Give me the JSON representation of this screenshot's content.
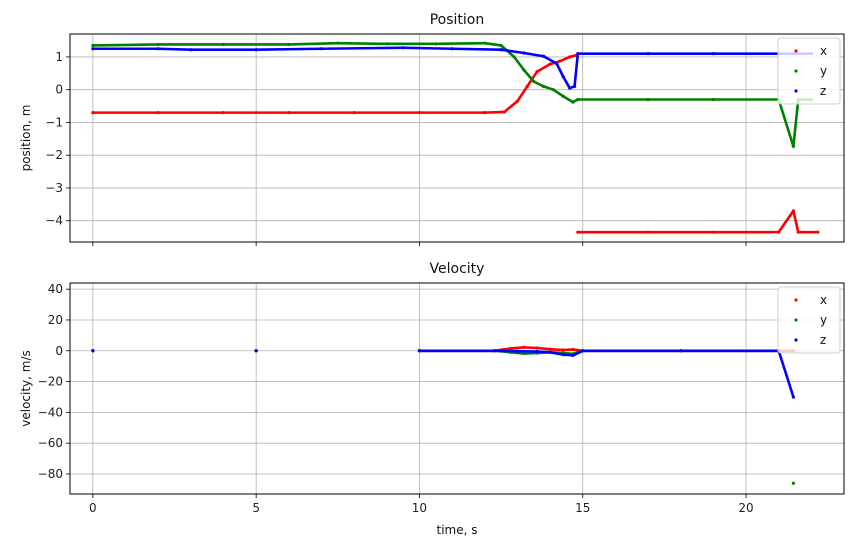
{
  "chart_data": [
    {
      "type": "scatter",
      "title": "Position",
      "xlabel": "",
      "ylabel": "position, m",
      "xlim": [
        -0.7,
        23.0
      ],
      "ylim": [
        -4.65,
        1.7
      ],
      "x_ticks": [
        0,
        5,
        10,
        15,
        20
      ],
      "x_tick_labels": [],
      "y_ticks": [
        1,
        0,
        -1,
        -2,
        -3,
        -4
      ],
      "y_tick_labels": [
        "1",
        "0",
        "−1",
        "−2",
        "−3",
        "−4"
      ],
      "grid": true,
      "legend": {
        "placement": "top-right",
        "entries": [
          "x",
          "y",
          "z"
        ]
      },
      "series": [
        {
          "name": "x",
          "color": "#ff0000",
          "points": [
            [
              0,
              -0.7
            ],
            [
              2,
              -0.7
            ],
            [
              4,
              -0.7
            ],
            [
              6,
              -0.7
            ],
            [
              8,
              -0.7
            ],
            [
              10,
              -0.7
            ],
            [
              12,
              -0.7
            ],
            [
              12.6,
              -0.68
            ],
            [
              13.0,
              -0.35
            ],
            [
              13.3,
              0.1
            ],
            [
              13.6,
              0.55
            ],
            [
              14.0,
              0.78
            ],
            [
              14.3,
              0.87
            ],
            [
              14.6,
              1.0
            ],
            [
              14.8,
              1.05
            ],
            [
              14.85,
              -4.35
            ],
            [
              17,
              -4.35
            ],
            [
              19,
              -4.35
            ],
            [
              21,
              -4.35
            ],
            [
              21.45,
              -3.7
            ],
            [
              21.6,
              -4.35
            ],
            [
              22.2,
              -4.35
            ]
          ]
        },
        {
          "name": "y",
          "color": "#008000",
          "points": [
            [
              0,
              1.35
            ],
            [
              2,
              1.38
            ],
            [
              4,
              1.38
            ],
            [
              6,
              1.38
            ],
            [
              7.5,
              1.42
            ],
            [
              9,
              1.4
            ],
            [
              10.5,
              1.4
            ],
            [
              12,
              1.42
            ],
            [
              12.5,
              1.35
            ],
            [
              12.9,
              1.0
            ],
            [
              13.2,
              0.6
            ],
            [
              13.5,
              0.25
            ],
            [
              13.8,
              0.1
            ],
            [
              14.1,
              0.0
            ],
            [
              14.4,
              -0.2
            ],
            [
              14.7,
              -0.38
            ],
            [
              14.85,
              -0.3
            ],
            [
              17,
              -0.3
            ],
            [
              19,
              -0.3
            ],
            [
              21,
              -0.3
            ],
            [
              21.45,
              -1.73
            ],
            [
              21.6,
              -0.3
            ],
            [
              22.0,
              -0.3
            ]
          ]
        },
        {
          "name": "z",
          "color": "#0000ff",
          "points": [
            [
              0,
              1.25
            ],
            [
              2,
              1.25
            ],
            [
              3,
              1.22
            ],
            [
              5,
              1.22
            ],
            [
              7,
              1.25
            ],
            [
              9.5,
              1.28
            ],
            [
              11,
              1.25
            ],
            [
              12.5,
              1.22
            ],
            [
              13.2,
              1.12
            ],
            [
              13.8,
              1.02
            ],
            [
              14.2,
              0.8
            ],
            [
              14.4,
              0.4
            ],
            [
              14.6,
              0.05
            ],
            [
              14.75,
              0.1
            ],
            [
              14.85,
              1.1
            ],
            [
              17,
              1.1
            ],
            [
              19,
              1.1
            ],
            [
              21,
              1.1
            ],
            [
              21.45,
              1.1
            ],
            [
              22.0,
              1.1
            ]
          ]
        }
      ]
    },
    {
      "type": "scatter",
      "title": "Velocity",
      "xlabel": "time, s",
      "ylabel": "velocity, m/s",
      "xlim": [
        -0.7,
        23.0
      ],
      "ylim": [
        -93,
        44
      ],
      "x_ticks": [
        0,
        5,
        10,
        15,
        20
      ],
      "x_tick_labels": [
        "0",
        "5",
        "10",
        "15",
        "20"
      ],
      "y_ticks": [
        40,
        20,
        0,
        -20,
        -40,
        -60,
        -80
      ],
      "y_tick_labels": [
        "40",
        "20",
        "0",
        "−20",
        "−40",
        "−60",
        "−80"
      ],
      "grid": true,
      "legend": {
        "placement": "top-right",
        "entries": [
          "x",
          "y",
          "z"
        ]
      },
      "series": [
        {
          "name": "x",
          "color": "#ff0000",
          "points": [
            [
              0,
              0
            ],
            [
              5,
              0
            ],
            [
              10,
              0
            ],
            [
              12.3,
              0
            ],
            [
              12.8,
              1.5
            ],
            [
              13.2,
              2.2
            ],
            [
              13.6,
              1.8
            ],
            [
              14.0,
              1.0
            ],
            [
              14.4,
              0.5
            ],
            [
              14.7,
              0.8
            ],
            [
              15,
              0
            ],
            [
              18,
              0
            ],
            [
              21,
              0
            ],
            [
              21.45,
              0
            ]
          ]
        },
        {
          "name": "y",
          "color": "#008000",
          "points": [
            [
              0,
              0
            ],
            [
              5,
              0
            ],
            [
              10,
              0
            ],
            [
              12.3,
              0
            ],
            [
              12.8,
              -1.0
            ],
            [
              13.2,
              -1.8
            ],
            [
              13.6,
              -1.5
            ],
            [
              14.0,
              -1.0
            ],
            [
              14.4,
              -1.5
            ],
            [
              14.7,
              -2.0
            ],
            [
              15,
              0
            ],
            [
              18,
              0
            ],
            [
              21,
              0
            ],
            [
              21.45,
              -86
            ]
          ]
        },
        {
          "name": "z",
          "color": "#0000ff",
          "points": [
            [
              0,
              0
            ],
            [
              5,
              0
            ],
            [
              10,
              0
            ],
            [
              12.3,
              0
            ],
            [
              13.0,
              -0.3
            ],
            [
              13.6,
              -0.5
            ],
            [
              14.0,
              -1.0
            ],
            [
              14.4,
              -2.5
            ],
            [
              14.7,
              -3.0
            ],
            [
              15,
              0
            ],
            [
              18,
              0
            ],
            [
              21,
              0
            ],
            [
              21.45,
              -30
            ]
          ]
        }
      ]
    }
  ]
}
